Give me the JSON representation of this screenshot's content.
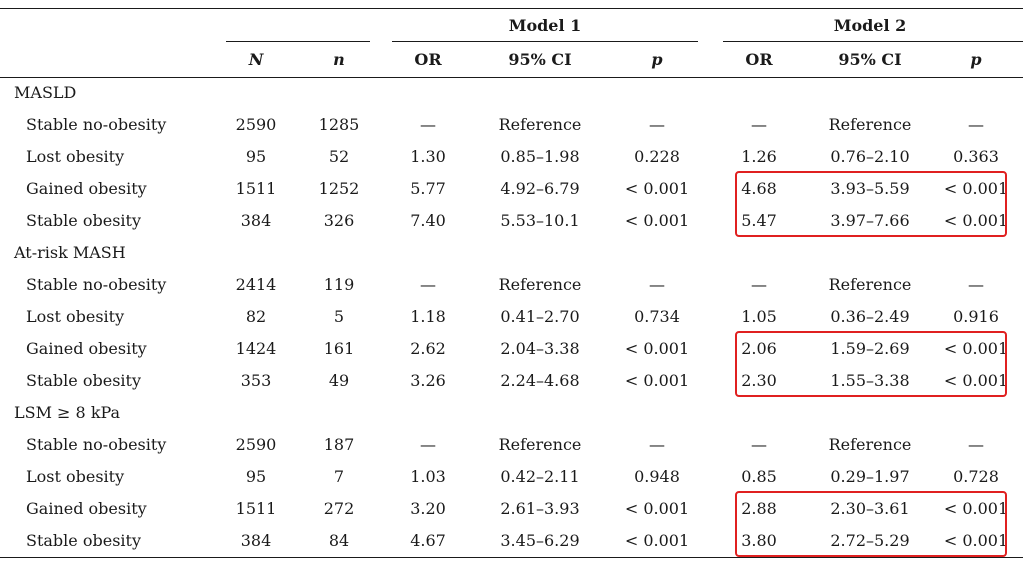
{
  "header": {
    "model1": "Model 1",
    "model2": "Model 2",
    "cols": [
      "N",
      "n",
      "OR",
      "95% CI",
      "p",
      "OR",
      "95% CI",
      "p"
    ]
  },
  "sections": [
    {
      "title": "MASLD",
      "rows": [
        [
          "Stable no-obesity",
          "2590",
          "1285",
          "—",
          "Reference",
          "—",
          "—",
          "Reference",
          "—"
        ],
        [
          "Lost obesity",
          "95",
          "52",
          "1.30",
          "0.85–1.98",
          "0.228",
          "1.26",
          "0.76–2.10",
          "0.363"
        ],
        [
          "Gained obesity",
          "1511",
          "1252",
          "5.77",
          "4.92–6.79",
          "< 0.001",
          "4.68",
          "3.93–5.59",
          "< 0.001"
        ],
        [
          "Stable obesity",
          "384",
          "326",
          "7.40",
          "5.53–10.1",
          "< 0.001",
          "5.47",
          "3.97–7.66",
          "< 0.001"
        ]
      ]
    },
    {
      "title": "At-risk MASH",
      "rows": [
        [
          "Stable no-obesity",
          "2414",
          "119",
          "—",
          "Reference",
          "—",
          "—",
          "Reference",
          "—"
        ],
        [
          "Lost obesity",
          "82",
          "5",
          "1.18",
          "0.41–2.70",
          "0.734",
          "1.05",
          "0.36–2.49",
          "0.916"
        ],
        [
          "Gained obesity",
          "1424",
          "161",
          "2.62",
          "2.04–3.38",
          "< 0.001",
          "2.06",
          "1.59–2.69",
          "< 0.001"
        ],
        [
          "Stable obesity",
          "353",
          "49",
          "3.26",
          "2.24–4.68",
          "< 0.001",
          "2.30",
          "1.55–3.38",
          "< 0.001"
        ]
      ]
    },
    {
      "title": "LSM ≥ 8 kPa",
      "rows": [
        [
          "Stable no-obesity",
          "2590",
          "187",
          "—",
          "Reference",
          "—",
          "—",
          "Reference",
          "—"
        ],
        [
          "Lost obesity",
          "95",
          "7",
          "1.03",
          "0.42–2.11",
          "0.948",
          "0.85",
          "0.29–1.97",
          "0.728"
        ],
        [
          "Gained obesity",
          "1511",
          "272",
          "3.20",
          "2.61–3.93",
          "< 0.001",
          "2.88",
          "2.30–3.61",
          "< 0.001"
        ],
        [
          "Stable obesity",
          "384",
          "84",
          "4.67",
          "3.45–6.29",
          "< 0.001",
          "3.80",
          "2.72–5.29",
          "< 0.001"
        ]
      ]
    }
  ],
  "colors": {
    "rule": "#1a1a1a",
    "highlight": "#e02020"
  }
}
